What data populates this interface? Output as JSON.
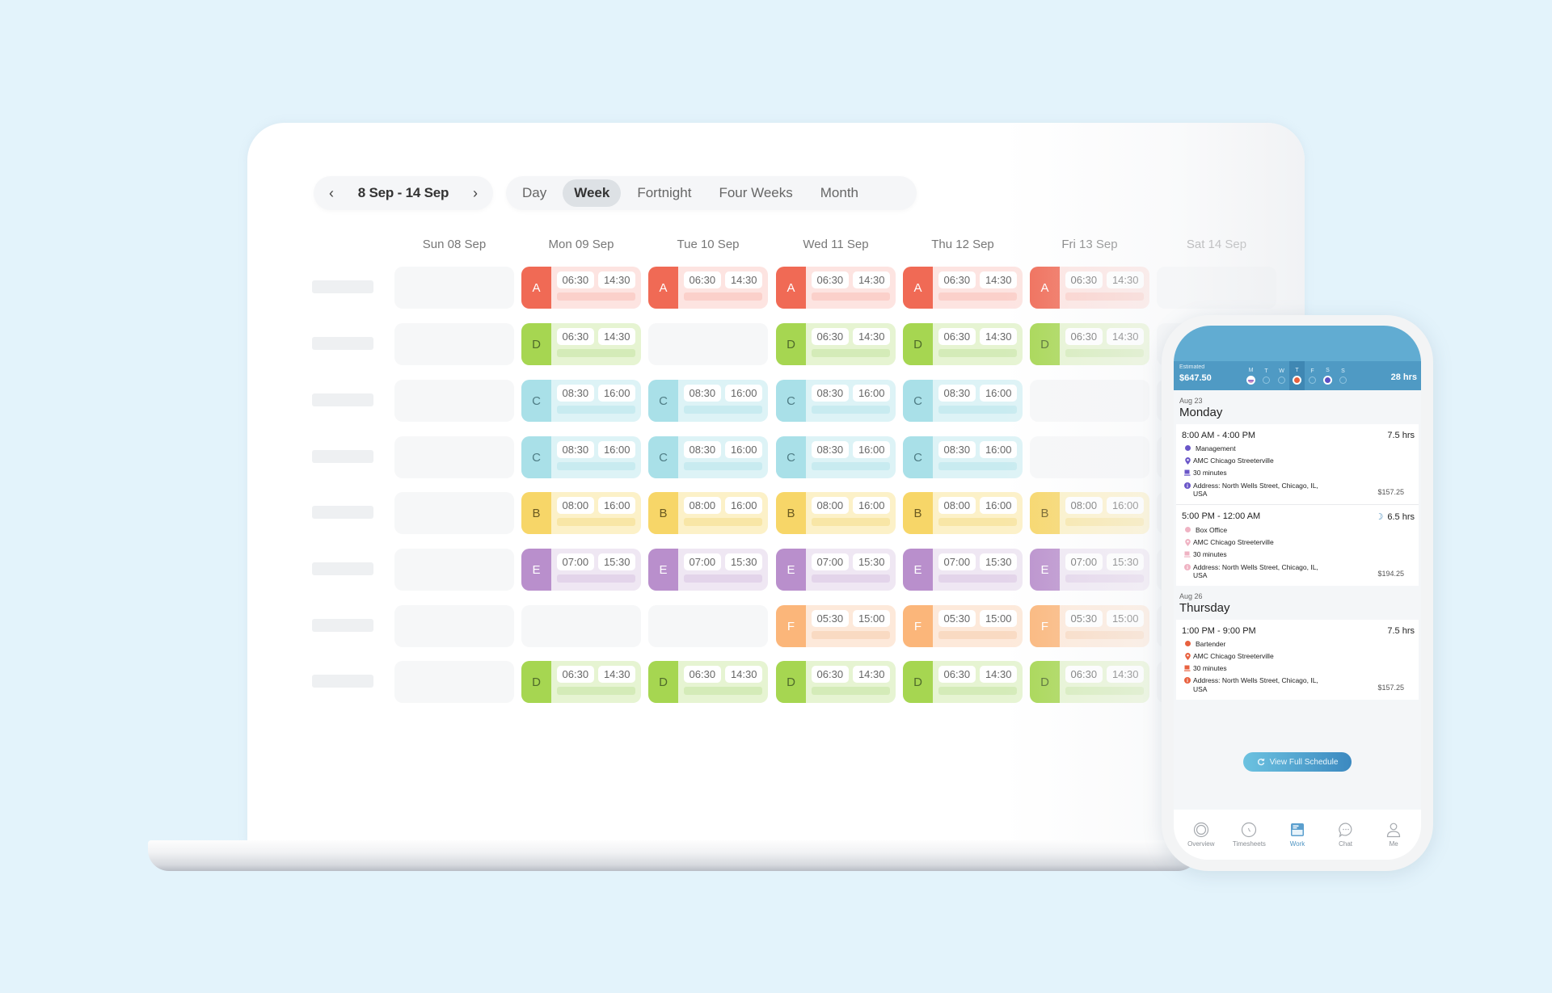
{
  "colors": {
    "background": "#e3f3fb",
    "A": {
      "tag": "#f06a55",
      "body": "#fde4e1",
      "bar": "#fbd0ca",
      "text": "#ffffff"
    },
    "B": {
      "tag": "#f7d668",
      "body": "#fcf1c8",
      "bar": "#f8e6a6",
      "text": "#6b5a20"
    },
    "C": {
      "tag": "#a9e0e8",
      "body": "#ddf3f6",
      "bar": "#c8ebf0",
      "text": "#4f7d85"
    },
    "D": {
      "tag": "#a6d651",
      "body": "#e6f4d2",
      "bar": "#d4ebb8",
      "text": "#4f6b2a"
    },
    "E": {
      "tag": "#b98fcc",
      "body": "#efe7f3",
      "bar": "#e3d4ea",
      "text": "#ffffff"
    },
    "F": {
      "tag": "#fbb67a",
      "body": "#fde9da",
      "bar": "#f9dac2",
      "text": "#ffffff"
    },
    "phone_header": "#61acd2",
    "phone_accent": "#4d93c2"
  },
  "schedule": {
    "date_range": "8 Sep - 14 Sep",
    "prev_icon": "chevron-left-icon",
    "next_icon": "chevron-right-icon",
    "view_tabs": [
      {
        "label": "Day",
        "active": false
      },
      {
        "label": "Week",
        "active": true
      },
      {
        "label": "Fortnight",
        "active": false
      },
      {
        "label": "Four Weeks",
        "active": false
      },
      {
        "label": "Month",
        "active": false
      }
    ],
    "days": [
      "Sun 08 Sep",
      "Mon 09 Sep",
      "Tue 10 Sep",
      "Wed 11 Sep",
      "Thu 12 Sep",
      "Fri 13 Sep",
      "Sat 14 Sep"
    ],
    "rows": [
      {
        "cells": [
          null,
          {
            "code": "A",
            "start": "06:30",
            "end": "14:30"
          },
          {
            "code": "A",
            "start": "06:30",
            "end": "14:30"
          },
          {
            "code": "A",
            "start": "06:30",
            "end": "14:30"
          },
          {
            "code": "A",
            "start": "06:30",
            "end": "14:30"
          },
          {
            "code": "A",
            "start": "06:30",
            "end": "14:30"
          },
          null
        ]
      },
      {
        "cells": [
          null,
          {
            "code": "D",
            "start": "06:30",
            "end": "14:30"
          },
          null,
          {
            "code": "D",
            "start": "06:30",
            "end": "14:30"
          },
          {
            "code": "D",
            "start": "06:30",
            "end": "14:30"
          },
          {
            "code": "D",
            "start": "06:30",
            "end": "14:30"
          },
          null
        ]
      },
      {
        "cells": [
          null,
          {
            "code": "C",
            "start": "08:30",
            "end": "16:00"
          },
          {
            "code": "C",
            "start": "08:30",
            "end": "16:00"
          },
          {
            "code": "C",
            "start": "08:30",
            "end": "16:00"
          },
          {
            "code": "C",
            "start": "08:30",
            "end": "16:00"
          },
          null,
          null
        ]
      },
      {
        "cells": [
          null,
          {
            "code": "C",
            "start": "08:30",
            "end": "16:00"
          },
          {
            "code": "C",
            "start": "08:30",
            "end": "16:00"
          },
          {
            "code": "C",
            "start": "08:30",
            "end": "16:00"
          },
          {
            "code": "C",
            "start": "08:30",
            "end": "16:00"
          },
          null,
          null
        ]
      },
      {
        "cells": [
          null,
          {
            "code": "B",
            "start": "08:00",
            "end": "16:00"
          },
          {
            "code": "B",
            "start": "08:00",
            "end": "16:00"
          },
          {
            "code": "B",
            "start": "08:00",
            "end": "16:00"
          },
          {
            "code": "B",
            "start": "08:00",
            "end": "16:00"
          },
          {
            "code": "B",
            "start": "08:00",
            "end": "16:00"
          },
          null
        ]
      },
      {
        "cells": [
          null,
          {
            "code": "E",
            "start": "07:00",
            "end": "15:30"
          },
          {
            "code": "E",
            "start": "07:00",
            "end": "15:30"
          },
          {
            "code": "E",
            "start": "07:00",
            "end": "15:30"
          },
          {
            "code": "E",
            "start": "07:00",
            "end": "15:30"
          },
          {
            "code": "E",
            "start": "07:00",
            "end": "15:30"
          },
          null
        ]
      },
      {
        "cells": [
          null,
          null,
          null,
          {
            "code": "F",
            "start": "05:30",
            "end": "15:00"
          },
          {
            "code": "F",
            "start": "05:30",
            "end": "15:00"
          },
          {
            "code": "F",
            "start": "05:30",
            "end": "15:00"
          },
          null
        ]
      },
      {
        "cells": [
          null,
          {
            "code": "D",
            "start": "06:30",
            "end": "14:30"
          },
          {
            "code": "D",
            "start": "06:30",
            "end": "14:30"
          },
          {
            "code": "D",
            "start": "06:30",
            "end": "14:30"
          },
          {
            "code": "D",
            "start": "06:30",
            "end": "14:30"
          },
          {
            "code": "D",
            "start": "06:30",
            "end": "14:30"
          },
          null
        ]
      }
    ]
  },
  "phone": {
    "estimated_label": "Estimated",
    "estimated_value": "$647.50",
    "total_hours": "28 hrs",
    "week_days": [
      {
        "letter": "M",
        "dot": "split",
        "color": "#8a63c9",
        "current": false
      },
      {
        "letter": "T",
        "dot": "empty",
        "color": "",
        "current": false
      },
      {
        "letter": "W",
        "dot": "empty",
        "color": "",
        "current": false
      },
      {
        "letter": "T",
        "dot": "fill",
        "color": "#e8613f",
        "current": true
      },
      {
        "letter": "F",
        "dot": "empty",
        "color": "",
        "current": false
      },
      {
        "letter": "S",
        "dot": "fill",
        "color": "#5b4fc4",
        "current": false
      },
      {
        "letter": "S",
        "dot": "empty",
        "color": "",
        "current": false
      }
    ],
    "days": [
      {
        "date": "Aug 23",
        "weekday": "Monday",
        "shifts": [
          {
            "time": "8:00 AM - 4:00 PM",
            "hours": "7.5 hrs",
            "night": false,
            "color": "#6a56c8",
            "role": "Management",
            "location": "AMC Chicago Streeterville",
            "break": "30 minutes",
            "address": "Address: North Wells Street, Chicago, IL, USA",
            "pay": "$157.25"
          },
          {
            "time": "5:00 PM - 12:00 AM",
            "hours": "6.5 hrs",
            "night": true,
            "color": "#efb3c3",
            "role": "Box Office",
            "location": "AMC Chicago Streeterville",
            "break": "30 minutes",
            "address": "Address: North Wells Street, Chicago, IL, USA",
            "pay": "$194.25"
          }
        ]
      },
      {
        "date": "Aug 26",
        "weekday": "Thursday",
        "shifts": [
          {
            "time": "1:00 PM - 9:00 PM",
            "hours": "7.5 hrs",
            "night": false,
            "color": "#e8613f",
            "role": "Bartender",
            "location": "AMC Chicago Streeterville",
            "break": "30 minutes",
            "address": "Address: North Wells Street, Chicago, IL, USA",
            "pay": "$157.25"
          }
        ]
      }
    ],
    "view_full_label": "View Full Schedule",
    "nav": [
      {
        "label": "Overview",
        "icon": "overview-icon",
        "active": false
      },
      {
        "label": "Timesheets",
        "icon": "clock-icon",
        "active": false
      },
      {
        "label": "Work",
        "icon": "calendar-icon",
        "active": true
      },
      {
        "label": "Chat",
        "icon": "chat-icon",
        "active": false
      },
      {
        "label": "Me",
        "icon": "person-icon",
        "active": false
      }
    ]
  }
}
